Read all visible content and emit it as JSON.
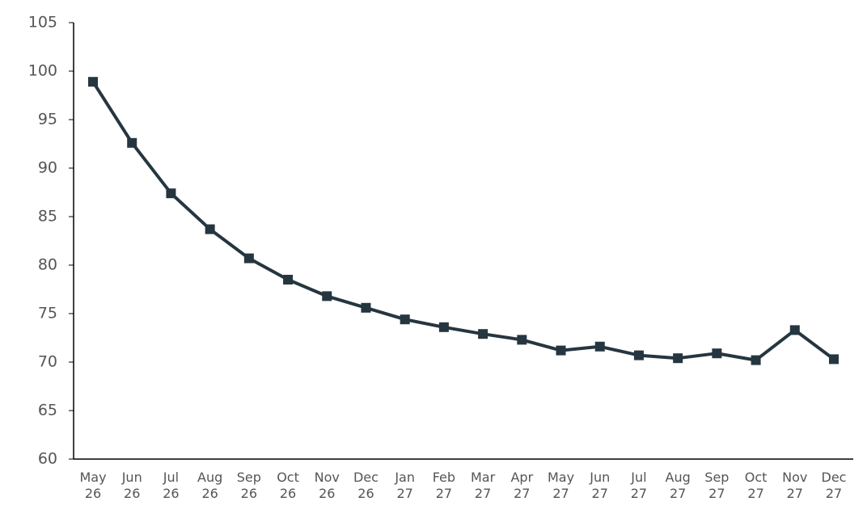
{
  "chart_data": {
    "type": "line",
    "categories": [
      "May 26",
      "Jun 26",
      "Jul 26",
      "Aug 26",
      "Sep 26",
      "Oct 26",
      "Nov 26",
      "Dec 26",
      "Jan 27",
      "Feb 27",
      "Mar 27",
      "Apr 27",
      "May 27",
      "Jun 27",
      "Jul 27",
      "Aug 27",
      "Sep 27",
      "Oct 27",
      "Nov 27",
      "Dec 27"
    ],
    "series": [
      {
        "color": "#253640",
        "values": [
          98.9,
          92.6,
          87.4,
          83.7,
          80.7,
          78.5,
          76.8,
          75.6,
          74.4,
          73.6,
          72.9,
          72.3,
          71.2,
          71.6,
          70.7,
          70.4,
          70.9,
          70.2,
          73.3,
          70.3
        ]
      }
    ],
    "ylim": [
      60,
      105
    ],
    "yticks": [
      60,
      65,
      70,
      75,
      80,
      85,
      90,
      95,
      100,
      105
    ],
    "grid": false
  }
}
